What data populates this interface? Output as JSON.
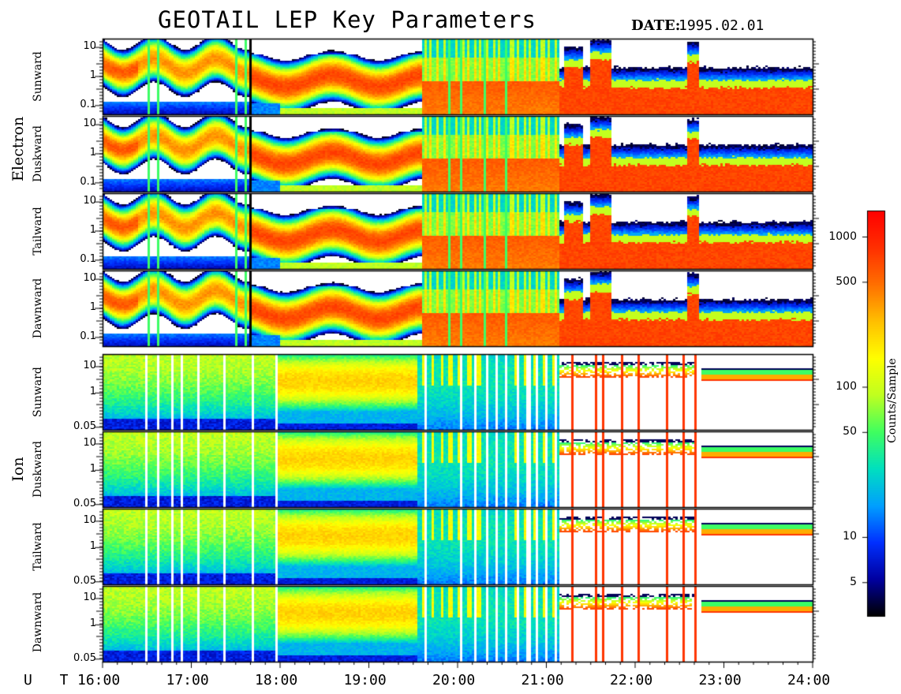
{
  "chart_data": {
    "type": "heatmap",
    "title": "GEOTAIL LEP Key Parameters",
    "date_label": "DATE:",
    "date_value": "1995.02.01",
    "x_axis": {
      "label": "U T",
      "ticks": [
        "16:00",
        "17:00",
        "18:00",
        "19:00",
        "20:00",
        "21:00",
        "22:00",
        "23:00",
        "24:00"
      ],
      "range_hours": [
        16,
        24
      ]
    },
    "groups": [
      {
        "name": "Electron",
        "y_scale": "log",
        "y_ticks": [
          "10",
          "1",
          "0.1"
        ],
        "y_tick_values": [
          10,
          1,
          0.1
        ],
        "y_range": [
          0.05,
          20
        ],
        "panels": [
          "Sunward",
          "Duskward",
          "Tailward",
          "Dawnward"
        ]
      },
      {
        "name": "Ion",
        "y_scale": "log",
        "y_ticks": [
          "10",
          "1",
          "0.05"
        ],
        "y_tick_values": [
          10,
          1,
          0.05
        ],
        "y_range": [
          0.04,
          30
        ],
        "panels": [
          "Sunward",
          "Duskward",
          "Tailward",
          "Dawnward"
        ]
      }
    ],
    "colorbar": {
      "label": "Counts/Sample",
      "scale": "log",
      "range": [
        3,
        1500
      ],
      "ticks": [
        "1000",
        "500",
        "100",
        "50",
        "10",
        "5"
      ],
      "tick_values": [
        1000,
        500,
        100,
        50,
        10,
        5
      ],
      "colormap": [
        "#000000",
        "#0000a0",
        "#0030ff",
        "#00a0ff",
        "#00e0c0",
        "#40ff60",
        "#c0ff20",
        "#ffff00",
        "#ffc000",
        "#ff7000",
        "#ff3000",
        "#ff0000"
      ]
    },
    "features": {
      "electron_lobe_onset_hour": 21.15,
      "electron_hot_band_hours": [
        18.0,
        19.5
      ],
      "ion_data_gap_start_hour": 21.15,
      "ion_cold_band_start_hour": 22.7
    }
  }
}
